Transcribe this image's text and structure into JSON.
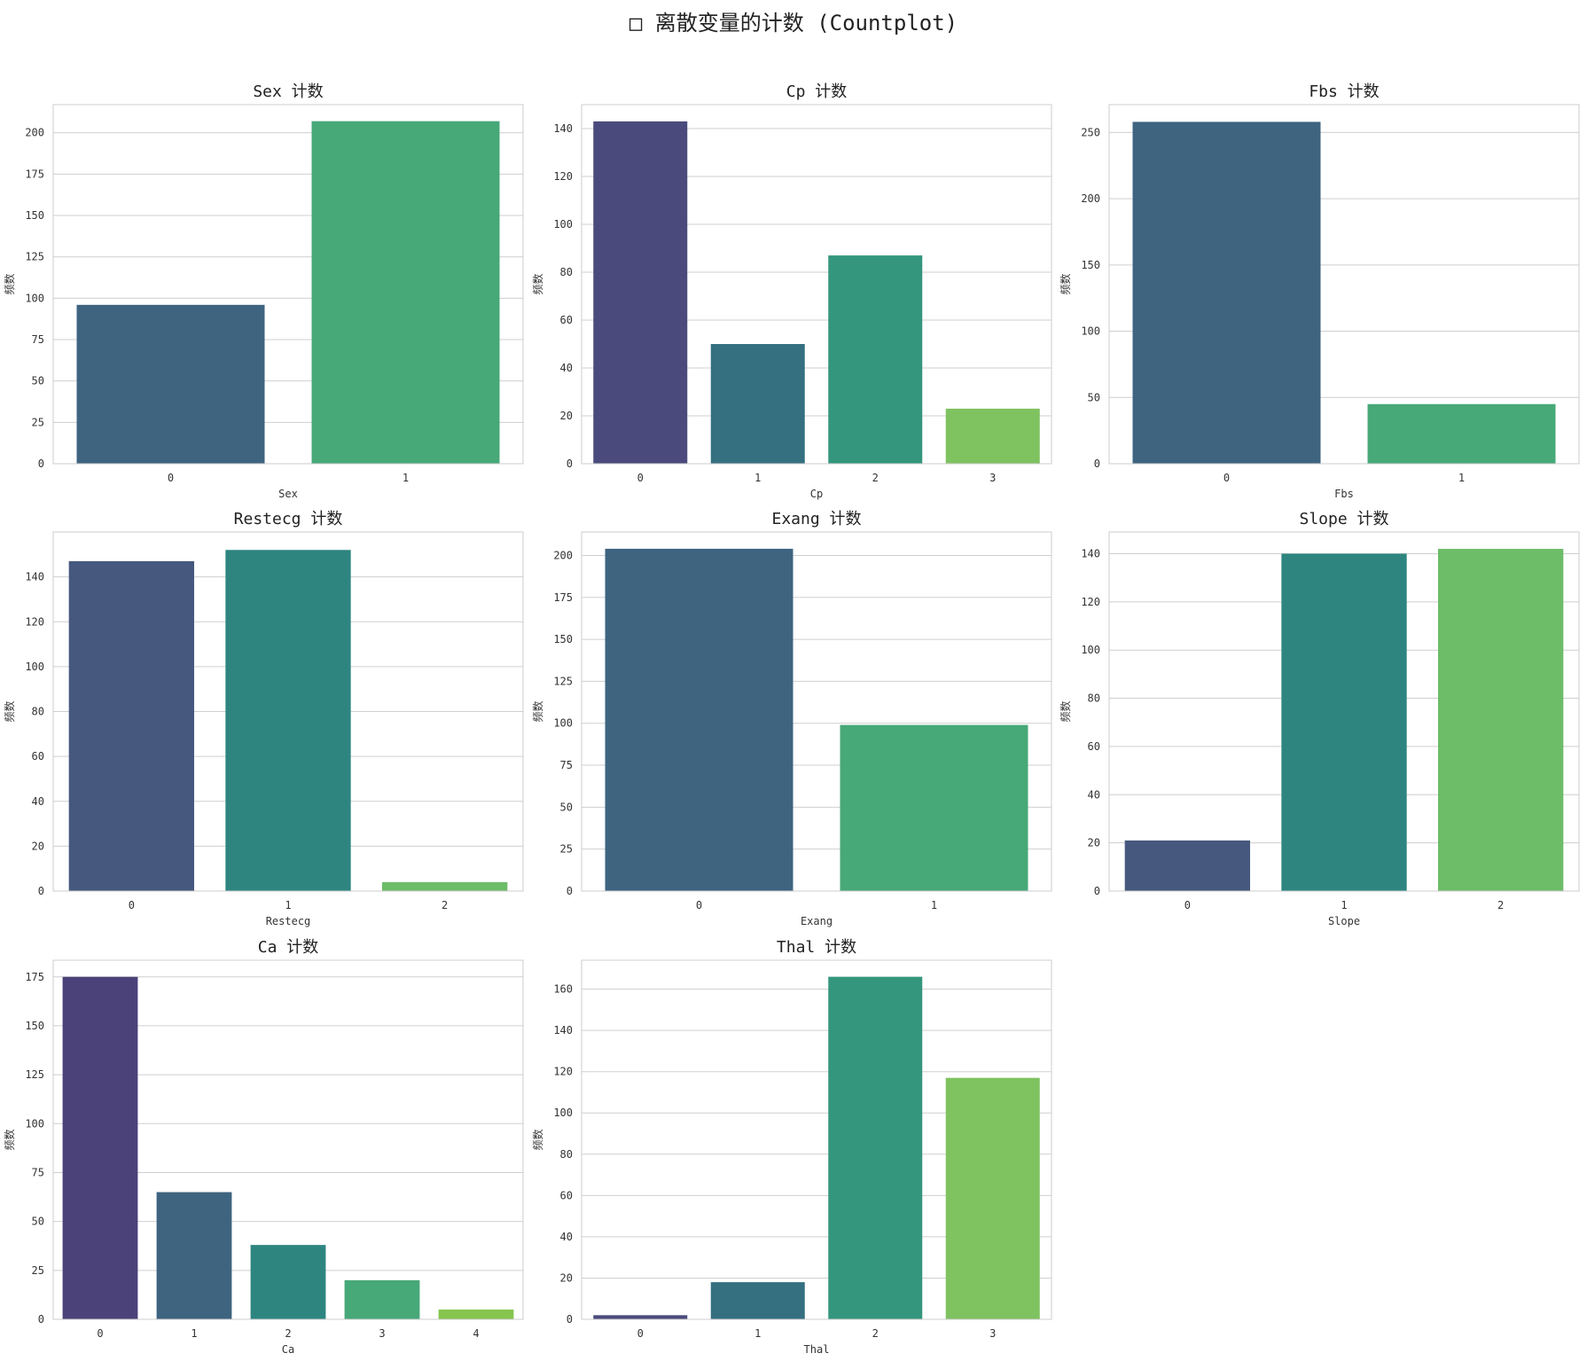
{
  "figure": {
    "suptitle": "□ 离散变量的计数 (Countplot)"
  },
  "chart_data": [
    {
      "type": "bar",
      "title": "Sex 计数",
      "xlabel": "Sex",
      "ylabel": "频数",
      "categories": [
        "0",
        "1"
      ],
      "values": [
        96,
        207
      ],
      "ylim": [
        0,
        217
      ],
      "yticks": [
        0,
        25,
        50,
        75,
        100,
        125,
        150,
        175,
        200
      ],
      "colors": [
        "#3e6480",
        "#47a878"
      ]
    },
    {
      "type": "bar",
      "title": "Cp 计数",
      "xlabel": "Cp",
      "ylabel": "频数",
      "categories": [
        "0",
        "1",
        "2",
        "3"
      ],
      "values": [
        143,
        50,
        87,
        23
      ],
      "ylim": [
        0,
        150
      ],
      "yticks": [
        0,
        20,
        40,
        60,
        80,
        100,
        120,
        140
      ],
      "colors": [
        "#4a4b7c",
        "#357080",
        "#33967d",
        "#7fc260"
      ]
    },
    {
      "type": "bar",
      "title": "Fbs 计数",
      "xlabel": "Fbs",
      "ylabel": "频数",
      "categories": [
        "0",
        "1"
      ],
      "values": [
        258,
        45
      ],
      "ylim": [
        0,
        271
      ],
      "yticks": [
        0,
        50,
        100,
        150,
        200,
        250
      ],
      "colors": [
        "#3e6480",
        "#47a878"
      ]
    },
    {
      "type": "bar",
      "title": "Restecg 计数",
      "xlabel": "Restecg",
      "ylabel": "频数",
      "categories": [
        "0",
        "1",
        "2"
      ],
      "values": [
        147,
        152,
        4
      ],
      "ylim": [
        0,
        160
      ],
      "yticks": [
        0,
        20,
        40,
        60,
        80,
        100,
        120,
        140
      ],
      "colors": [
        "#46587e",
        "#2e8580",
        "#6cbc68"
      ]
    },
    {
      "type": "bar",
      "title": "Exang 计数",
      "xlabel": "Exang",
      "ylabel": "频数",
      "categories": [
        "0",
        "1"
      ],
      "values": [
        204,
        99
      ],
      "ylim": [
        0,
        214
      ],
      "yticks": [
        0,
        25,
        50,
        75,
        100,
        125,
        150,
        175,
        200
      ],
      "colors": [
        "#3e6480",
        "#47a878"
      ]
    },
    {
      "type": "bar",
      "title": "Slope 计数",
      "xlabel": "Slope",
      "ylabel": "频数",
      "categories": [
        "0",
        "1",
        "2"
      ],
      "values": [
        21,
        140,
        142
      ],
      "ylim": [
        0,
        149
      ],
      "yticks": [
        0,
        20,
        40,
        60,
        80,
        100,
        120,
        140
      ],
      "colors": [
        "#46587e",
        "#2e8580",
        "#6cbc68"
      ]
    },
    {
      "type": "bar",
      "title": "Ca 计数",
      "xlabel": "Ca",
      "ylabel": "频数",
      "categories": [
        "0",
        "1",
        "2",
        "3",
        "4"
      ],
      "values": [
        175,
        65,
        38,
        20,
        5
      ],
      "ylim": [
        0,
        183.5
      ],
      "yticks": [
        0,
        25,
        50,
        75,
        100,
        125,
        150,
        175
      ],
      "colors": [
        "#4b4279",
        "#3e6480",
        "#2e8580",
        "#47a878",
        "#86c54e"
      ]
    },
    {
      "type": "bar",
      "title": "Thal 计数",
      "xlabel": "Thal",
      "ylabel": "频数",
      "categories": [
        "0",
        "1",
        "2",
        "3"
      ],
      "values": [
        2,
        18,
        166,
        117
      ],
      "ylim": [
        0,
        174
      ],
      "yticks": [
        0,
        20,
        40,
        60,
        80,
        100,
        120,
        140,
        160
      ],
      "colors": [
        "#4a4b7c",
        "#357080",
        "#33967d",
        "#7fc260"
      ]
    }
  ]
}
